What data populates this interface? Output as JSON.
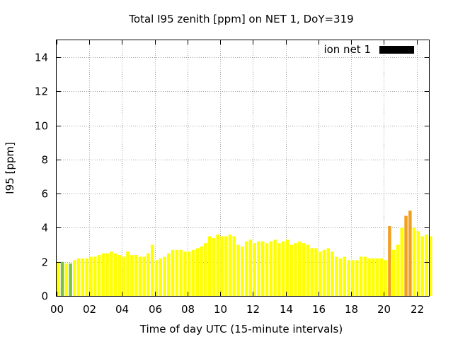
{
  "chart_data": {
    "type": "bar",
    "title": "Total I95 zenith [ppm] on NET 1, DoY=319",
    "xlabel": "Time of day UTC (15-minute intervals)",
    "ylabel": "I95 [ppm]",
    "ylim": [
      0,
      15
    ],
    "xlim": [
      0,
      22.75
    ],
    "yticks": [
      0,
      2,
      4,
      6,
      8,
      10,
      12,
      14
    ],
    "xticks": [
      {
        "value": 0,
        "label": "00"
      },
      {
        "value": 2,
        "label": "02"
      },
      {
        "value": 4,
        "label": "04"
      },
      {
        "value": 6,
        "label": "06"
      },
      {
        "value": 8,
        "label": "08"
      },
      {
        "value": 10,
        "label": "10"
      },
      {
        "value": 12,
        "label": "12"
      },
      {
        "value": 14,
        "label": "14"
      },
      {
        "value": 16,
        "label": "16"
      },
      {
        "value": 18,
        "label": "18"
      },
      {
        "value": 20,
        "label": "20"
      },
      {
        "value": 22,
        "label": "22"
      }
    ],
    "grid": true,
    "legend": {
      "placement": "top-right",
      "entries": [
        {
          "label": "ion net 1",
          "color": "#000000"
        }
      ]
    },
    "interval_hours": 0.25,
    "colors": {
      "yellow": "#ffff00",
      "green": "#7ac143",
      "orange": "#f0a020"
    },
    "values": [
      2.0,
      2.0,
      1.9,
      1.9,
      2.1,
      2.2,
      2.2,
      2.2,
      2.3,
      2.3,
      2.4,
      2.5,
      2.5,
      2.6,
      2.5,
      2.4,
      2.3,
      2.6,
      2.4,
      2.4,
      2.3,
      2.3,
      2.5,
      3.0,
      2.1,
      2.2,
      2.3,
      2.5,
      2.7,
      2.7,
      2.7,
      2.6,
      2.6,
      2.7,
      2.8,
      2.9,
      3.1,
      3.5,
      3.4,
      3.6,
      3.5,
      3.5,
      3.6,
      3.5,
      3.0,
      2.9,
      3.2,
      3.3,
      3.1,
      3.2,
      3.2,
      3.1,
      3.2,
      3.3,
      3.1,
      3.2,
      3.3,
      3.0,
      3.1,
      3.2,
      3.1,
      3.0,
      2.8,
      2.8,
      2.6,
      2.7,
      2.8,
      2.6,
      2.3,
      2.2,
      2.3,
      2.1,
      2.1,
      2.1,
      2.3,
      2.3,
      2.2,
      2.2,
      2.2,
      2.2,
      2.1,
      4.1,
      2.7,
      3.0,
      4.0,
      4.7,
      5.0,
      4.0,
      3.8,
      3.5,
      3.6,
      3.5
    ],
    "bar_colors": [
      "yellow",
      "green",
      "yellow",
      "green",
      "yellow",
      "yellow",
      "yellow",
      "yellow",
      "yellow",
      "yellow",
      "yellow",
      "yellow",
      "yellow",
      "yellow",
      "yellow",
      "yellow",
      "yellow",
      "yellow",
      "yellow",
      "yellow",
      "yellow",
      "yellow",
      "yellow",
      "yellow",
      "yellow",
      "yellow",
      "yellow",
      "yellow",
      "yellow",
      "yellow",
      "yellow",
      "yellow",
      "yellow",
      "yellow",
      "yellow",
      "yellow",
      "yellow",
      "yellow",
      "yellow",
      "yellow",
      "yellow",
      "yellow",
      "yellow",
      "yellow",
      "yellow",
      "yellow",
      "yellow",
      "yellow",
      "yellow",
      "yellow",
      "yellow",
      "yellow",
      "yellow",
      "yellow",
      "yellow",
      "yellow",
      "yellow",
      "yellow",
      "yellow",
      "yellow",
      "yellow",
      "yellow",
      "yellow",
      "yellow",
      "yellow",
      "yellow",
      "yellow",
      "yellow",
      "yellow",
      "yellow",
      "yellow",
      "yellow",
      "yellow",
      "yellow",
      "yellow",
      "yellow",
      "yellow",
      "yellow",
      "yellow",
      "yellow",
      "yellow",
      "orange",
      "yellow",
      "yellow",
      "yellow",
      "orange",
      "orange",
      "yellow",
      "yellow",
      "yellow",
      "yellow",
      "yellow"
    ]
  }
}
